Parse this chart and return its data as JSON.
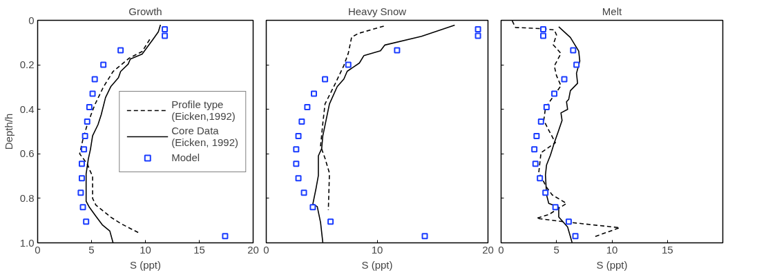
{
  "chart_data": [
    {
      "type": "line",
      "title": "Growth",
      "xlabel": "S (ppt)",
      "ylabel": "Depth/h",
      "xlim": [
        0,
        20
      ],
      "ylim": [
        1,
        0
      ],
      "xticks": [
        0,
        5,
        10,
        15,
        20
      ],
      "yticks": [
        0,
        0.2,
        0.4,
        0.6,
        0.8,
        {
          "value": 1,
          "label": "1.0"
        }
      ],
      "grid": false,
      "legend": "center right",
      "series": [
        {
          "name": "Profile type\n(Eicken,1992)",
          "line_style": "dashed",
          "color": "#000000",
          "x": [
            10.4,
            9.7,
            8.5,
            7.0,
            6.1,
            5.3,
            4.6,
            4.2,
            3.9,
            4.6,
            4.9,
            5.1,
            5.1,
            5.4,
            6.8,
            7.7,
            9.5
          ],
          "values": [
            0.086,
            0.14,
            0.17,
            0.23,
            0.3,
            0.38,
            0.47,
            0.535,
            0.6,
            0.645,
            0.68,
            0.7,
            0.8,
            0.83,
            0.885,
            0.913,
            0.958
          ]
        },
        {
          "name": "Core Data\n(Eicken, 1992)",
          "line_style": "solid",
          "color": "#000000",
          "x": [
            11.4,
            11.2,
            10.7,
            9.7,
            8.6,
            8.4,
            7.7,
            7.5,
            6.8,
            6.3,
            5.9,
            5.6,
            5.1,
            4.9,
            4.7,
            4.5,
            4.5,
            4.8,
            5.4,
            6.0,
            6.7,
            7.0
          ],
          "values": [
            0.02,
            0.052,
            0.086,
            0.152,
            0.174,
            0.197,
            0.23,
            0.258,
            0.297,
            0.347,
            0.424,
            0.469,
            0.519,
            0.58,
            0.624,
            0.69,
            0.813,
            0.84,
            0.88,
            0.919,
            0.947,
            1.0
          ]
        },
        {
          "name": "Model",
          "type": "scatter",
          "marker": "square",
          "color": "#1a3cff",
          "x": [
            11.8,
            11.8,
            7.7,
            6.1,
            5.3,
            5.1,
            4.8,
            4.6,
            4.4,
            4.3,
            4.1,
            4.1,
            4.0,
            4.2,
            4.5,
            17.4
          ],
          "values": [
            0.04,
            0.07,
            0.135,
            0.2,
            0.265,
            0.33,
            0.39,
            0.455,
            0.52,
            0.58,
            0.645,
            0.71,
            0.775,
            0.84,
            0.905,
            0.97
          ]
        }
      ]
    },
    {
      "type": "line",
      "title": "Heavy Snow",
      "xlabel": "S (ppt)",
      "xlim": [
        0,
        20
      ],
      "ylim": [
        1,
        0
      ],
      "xticks": [
        0,
        10,
        20
      ],
      "yticks": [
        0,
        0.2,
        0.4,
        0.6,
        0.8,
        1
      ],
      "tick_labels": "x",
      "grid": false,
      "series": [
        {
          "line_style": "dashed",
          "color": "#000000",
          "x": [
            10.6,
            8.3,
            7.7,
            7.4,
            7.0,
            6.2,
            5.3,
            5.1,
            4.9,
            5.3,
            5.7,
            5.6
          ],
          "values": [
            0.026,
            0.059,
            0.076,
            0.148,
            0.203,
            0.287,
            0.376,
            0.464,
            0.564,
            0.62,
            0.687,
            0.853
          ]
        },
        {
          "line_style": "solid",
          "color": "#000000",
          "x": [
            17.0,
            14.0,
            10.7,
            10.3,
            8.8,
            8.4,
            7.3,
            7.0,
            6.4,
            5.7,
            5.4,
            5.1,
            5.0,
            4.7,
            4.7,
            4.5,
            4.2,
            4.6,
            4.9,
            5.1
          ],
          "values": [
            0.022,
            0.072,
            0.111,
            0.137,
            0.159,
            0.192,
            0.229,
            0.264,
            0.298,
            0.376,
            0.448,
            0.52,
            0.576,
            0.609,
            0.698,
            0.753,
            0.826,
            0.837,
            0.909,
            0.998
          ]
        },
        {
          "type": "scatter",
          "marker": "square",
          "color": "#1a3cff",
          "x": [
            19.1,
            19.1,
            11.8,
            7.4,
            5.3,
            4.3,
            3.7,
            3.2,
            2.9,
            2.7,
            2.7,
            2.9,
            3.4,
            4.2,
            5.8,
            14.3
          ],
          "values": [
            0.04,
            0.07,
            0.135,
            0.2,
            0.265,
            0.33,
            0.39,
            0.455,
            0.52,
            0.58,
            0.645,
            0.71,
            0.775,
            0.84,
            0.905,
            0.97
          ]
        }
      ]
    },
    {
      "type": "line",
      "title": "Melt",
      "xlabel": "S (ppt)",
      "xlim": [
        0,
        20
      ],
      "ylim": [
        1,
        0
      ],
      "xticks": [
        0,
        5,
        10,
        15
      ],
      "yticks": [
        0,
        0.2,
        0.4,
        0.6,
        0.8,
        1
      ],
      "tick_labels": "x",
      "grid": false,
      "series": [
        {
          "line_style": "dashed",
          "color": "#000000",
          "x": [
            1.0,
            1.3,
            3.8,
            4.8,
            5.0,
            4.7,
            5.4,
            4.8,
            5.0,
            5.4,
            4.6,
            4.0,
            3.85,
            4.3,
            4.9,
            3.6,
            3.5,
            3.4,
            4.1,
            4.6,
            5.9,
            4.3,
            3.2,
            5.8,
            10.7,
            8.4
          ],
          "values": [
            0.002,
            0.032,
            0.038,
            0.043,
            0.066,
            0.11,
            0.149,
            0.205,
            0.249,
            0.294,
            0.35,
            0.394,
            0.45,
            0.494,
            0.55,
            0.595,
            0.639,
            0.684,
            0.75,
            0.784,
            0.823,
            0.873,
            0.89,
            0.906,
            0.932,
            0.973
          ]
        },
        {
          "line_style": "solid",
          "color": "#000000",
          "x": [
            5.2,
            6.25,
            7.0,
            7.1,
            6.8,
            6.9,
            6.25,
            6.1,
            5.9,
            6.0,
            5.4,
            5.5,
            5.2,
            4.8,
            4.45,
            4.1,
            4.0,
            4.1,
            4.3,
            5.2,
            5.2,
            6.0,
            6.4
          ],
          "values": [
            0.029,
            0.077,
            0.138,
            0.183,
            0.238,
            0.283,
            0.316,
            0.355,
            0.366,
            0.4,
            0.416,
            0.45,
            0.494,
            0.55,
            0.606,
            0.65,
            0.695,
            0.784,
            0.823,
            0.84,
            0.884,
            0.929,
            0.998
          ]
        },
        {
          "type": "scatter",
          "marker": "square",
          "color": "#1a3cff",
          "x": [
            3.8,
            3.8,
            6.5,
            6.8,
            5.7,
            4.8,
            4.1,
            3.6,
            3.2,
            3.0,
            3.1,
            3.5,
            4.0,
            4.9,
            6.1,
            6.7
          ],
          "values": [
            0.04,
            0.07,
            0.135,
            0.2,
            0.265,
            0.33,
            0.39,
            0.455,
            0.52,
            0.58,
            0.645,
            0.71,
            0.775,
            0.84,
            0.905,
            0.97
          ]
        }
      ]
    }
  ]
}
